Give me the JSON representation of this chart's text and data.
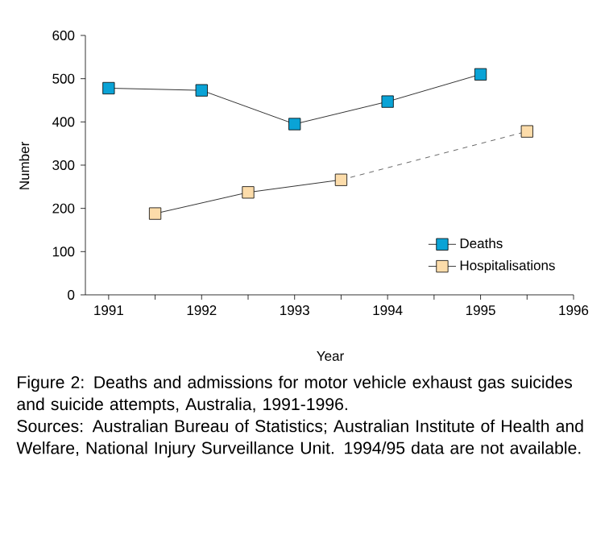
{
  "chart_data": {
    "type": "line",
    "xlabel": "Year",
    "ylabel": "Number",
    "xlim": [
      1990.75,
      1996
    ],
    "ylim": [
      0,
      600
    ],
    "xticks": [
      1991,
      {
        "value": 1991.5,
        "label": null
      },
      1992,
      {
        "value": 1992.5,
        "label": null
      },
      1993,
      {
        "value": 1993.5,
        "label": null
      },
      1994,
      {
        "value": 1994.5,
        "label": null
      },
      1995,
      {
        "value": 1995.5,
        "label": null
      },
      1996
    ],
    "yticks": [
      0,
      100,
      200,
      300,
      400,
      500,
      600
    ],
    "grid": false,
    "legend": "bottom right",
    "marker": "square",
    "line_style": "solid",
    "series": [
      {
        "name": "Deaths",
        "color": "#0aa3d6",
        "x": [
          1991,
          1992,
          1993,
          1994,
          1995
        ],
        "values": [
          478,
          473,
          395,
          447,
          510
        ]
      },
      {
        "name": "Hospitalisations",
        "color": "#fcdcaa",
        "x": [
          1991.5,
          1992.5,
          1993.5,
          1994.5,
          1995.5
        ],
        "values": [
          188,
          237,
          266,
          null,
          378
        ]
      },
      {
        "color": "#404040",
        "x": [
          1993.5,
          1995.5
        ],
        "values": [
          266,
          378
        ],
        "marker": "none",
        "line_style": "dashed"
      }
    ],
    "annotations": [
      "Figure 2: Deaths and admissions for motor vehicle exhaust gas suicides and suicide attempts, Australia, 1991-1996.",
      "Sources: Australian Bureau of Statistics; Australian Institute of Health and Welfare, National Injury Surveillance Unit. 1994/95 data are not available."
    ]
  }
}
